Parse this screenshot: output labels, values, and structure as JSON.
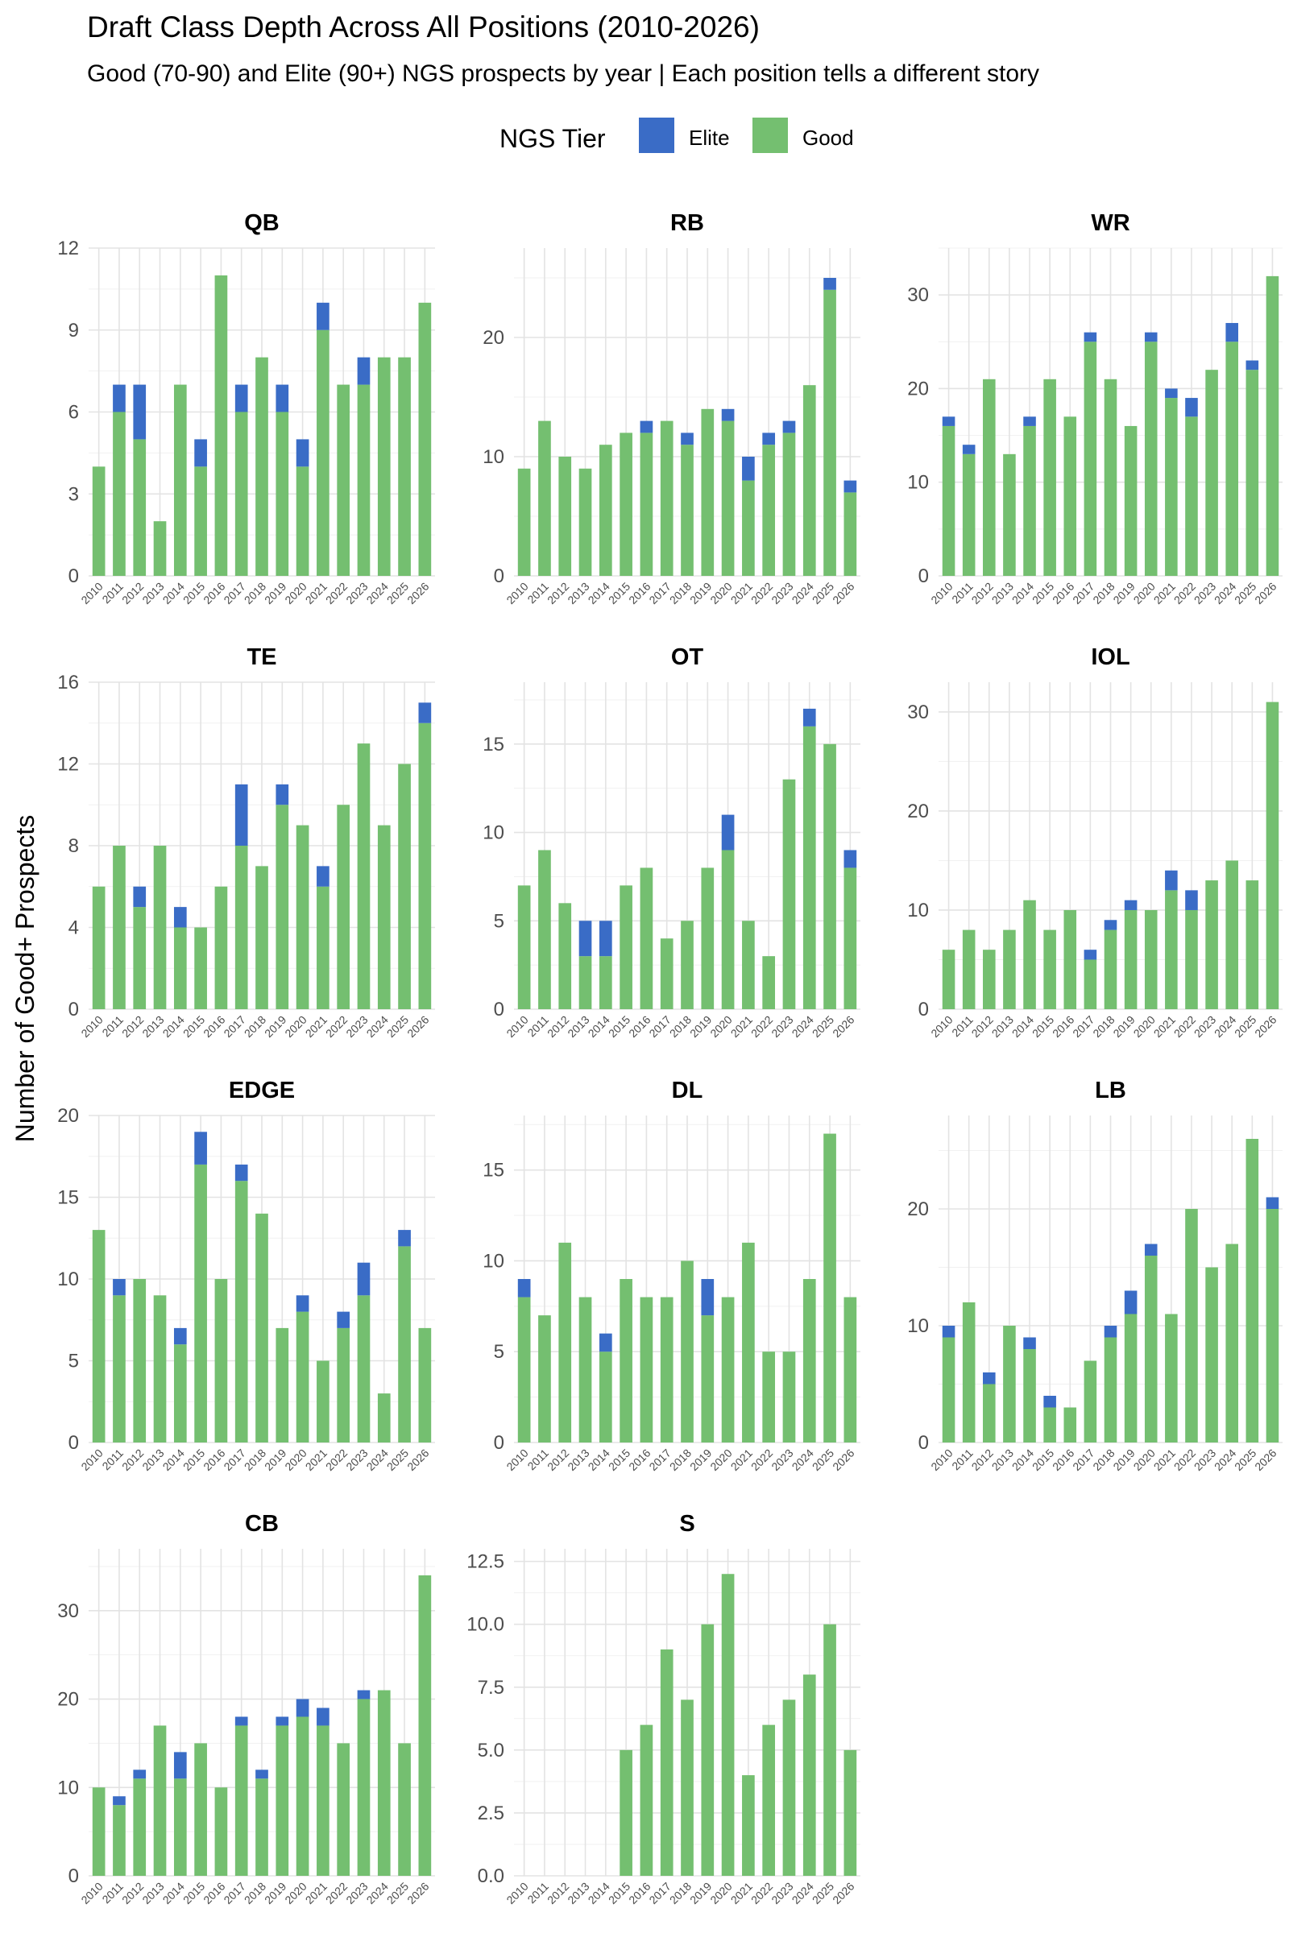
{
  "chart_data": {
    "type": "bar",
    "stacked": true,
    "title": "Draft Class Depth Across All Positions (2010-2026)",
    "subtitle": "Good (70-90) and Elite (90+) NGS prospects by year | Each position tells a different story",
    "ylabel": "Number of Good+ Prospects",
    "legend": {
      "title": "NGS Tier",
      "position": "top",
      "items": [
        {
          "name": "Elite",
          "color": "#3A6CC6"
        },
        {
          "name": "Good",
          "color": "#74BF70"
        }
      ]
    },
    "grid": true,
    "categories": [
      "2010",
      "2011",
      "2012",
      "2013",
      "2014",
      "2015",
      "2016",
      "2017",
      "2018",
      "2019",
      "2020",
      "2021",
      "2022",
      "2023",
      "2024",
      "2025",
      "2026"
    ],
    "facets": [
      {
        "name": "QB",
        "ylim": [
          0,
          12
        ],
        "yticks": [
          "0",
          "3",
          "6",
          "9",
          "12"
        ],
        "good": [
          4,
          6,
          5,
          2,
          7,
          4,
          11,
          6,
          8,
          6,
          4,
          9,
          7,
          7,
          8,
          8,
          10
        ],
        "elite": [
          0,
          1,
          2,
          0,
          0,
          1,
          0,
          1,
          0,
          1,
          1,
          1,
          0,
          1,
          0,
          0,
          0
        ]
      },
      {
        "name": "RB",
        "ylim": [
          0,
          27.5
        ],
        "yticks": [
          "0",
          "10",
          "20"
        ],
        "good": [
          9,
          13,
          10,
          9,
          11,
          12,
          12,
          13,
          11,
          14,
          13,
          8,
          11,
          12,
          16,
          24,
          7
        ],
        "elite": [
          0,
          0,
          0,
          0,
          0,
          0,
          1,
          0,
          1,
          0,
          1,
          2,
          1,
          1,
          0,
          1,
          1
        ]
      },
      {
        "name": "WR",
        "ylim": [
          0,
          35
        ],
        "yticks": [
          "0",
          "10",
          "20",
          "30"
        ],
        "good": [
          16,
          13,
          21,
          13,
          16,
          21,
          17,
          25,
          21,
          16,
          25,
          19,
          17,
          22,
          25,
          22,
          32
        ],
        "elite": [
          1,
          1,
          0,
          0,
          1,
          0,
          0,
          1,
          0,
          0,
          1,
          1,
          2,
          0,
          2,
          1,
          0
        ]
      },
      {
        "name": "TE",
        "ylim": [
          0,
          16
        ],
        "yticks": [
          "0",
          "4",
          "8",
          "12",
          "16"
        ],
        "good": [
          6,
          8,
          5,
          8,
          4,
          4,
          6,
          8,
          7,
          10,
          9,
          6,
          10,
          13,
          9,
          12,
          14
        ],
        "elite": [
          0,
          0,
          1,
          0,
          1,
          0,
          0,
          3,
          0,
          1,
          0,
          1,
          0,
          0,
          0,
          0,
          1
        ]
      },
      {
        "name": "OT",
        "ylim": [
          0,
          18.5
        ],
        "yticks": [
          "0",
          "5",
          "10",
          "15"
        ],
        "good": [
          7,
          9,
          6,
          3,
          3,
          7,
          8,
          4,
          5,
          8,
          9,
          5,
          3,
          13,
          16,
          15,
          8
        ],
        "elite": [
          0,
          0,
          0,
          2,
          2,
          0,
          0,
          0,
          0,
          0,
          2,
          0,
          0,
          0,
          1,
          0,
          1
        ]
      },
      {
        "name": "IOL",
        "ylim": [
          0,
          33
        ],
        "yticks": [
          "0",
          "10",
          "20",
          "30"
        ],
        "good": [
          6,
          8,
          6,
          8,
          11,
          8,
          10,
          5,
          8,
          10,
          10,
          12,
          10,
          13,
          15,
          13,
          31
        ],
        "elite": [
          0,
          0,
          0,
          0,
          0,
          0,
          0,
          1,
          1,
          1,
          0,
          2,
          2,
          0,
          0,
          0,
          0
        ]
      },
      {
        "name": "EDGE",
        "ylim": [
          0,
          20
        ],
        "yticks": [
          "0",
          "5",
          "10",
          "15",
          "20"
        ],
        "good": [
          13,
          9,
          10,
          9,
          6,
          17,
          10,
          16,
          14,
          7,
          8,
          5,
          7,
          9,
          3,
          12,
          7
        ],
        "elite": [
          0,
          1,
          0,
          0,
          1,
          2,
          0,
          1,
          0,
          0,
          1,
          0,
          1,
          2,
          0,
          1,
          0
        ]
      },
      {
        "name": "DL",
        "ylim": [
          0,
          18
        ],
        "yticks": [
          "0",
          "5",
          "10",
          "15"
        ],
        "good": [
          8,
          7,
          11,
          8,
          5,
          9,
          8,
          8,
          10,
          7,
          8,
          11,
          5,
          5,
          9,
          17,
          8
        ],
        "elite": [
          1,
          0,
          0,
          0,
          1,
          0,
          0,
          0,
          0,
          2,
          0,
          0,
          0,
          0,
          0,
          0,
          0
        ]
      },
      {
        "name": "LB",
        "ylim": [
          0,
          28
        ],
        "yticks": [
          "0",
          "10",
          "20"
        ],
        "good": [
          9,
          12,
          5,
          10,
          8,
          3,
          3,
          7,
          9,
          11,
          16,
          11,
          20,
          15,
          17,
          26,
          20
        ],
        "elite": [
          1,
          0,
          1,
          0,
          1,
          1,
          0,
          0,
          1,
          2,
          1,
          0,
          0,
          0,
          0,
          0,
          1
        ]
      },
      {
        "name": "CB",
        "ylim": [
          0,
          37
        ],
        "yticks": [
          "0",
          "10",
          "20",
          "30"
        ],
        "good": [
          10,
          8,
          11,
          17,
          11,
          15,
          10,
          17,
          11,
          17,
          18,
          17,
          15,
          20,
          21,
          15,
          34
        ],
        "elite": [
          0,
          1,
          1,
          0,
          3,
          0,
          0,
          1,
          1,
          1,
          2,
          2,
          0,
          1,
          0,
          0,
          0
        ]
      },
      {
        "name": "S",
        "ylim": [
          0,
          13
        ],
        "yticks": [
          "0.0",
          "2.5",
          "5.0",
          "7.5",
          "10.0",
          "12.5"
        ],
        "good": [
          0,
          0,
          0,
          0,
          0,
          5,
          6,
          9,
          7,
          10,
          12,
          4,
          6,
          7,
          8,
          10,
          5
        ],
        "elite": [
          0,
          0,
          0,
          0,
          0,
          0,
          0,
          0,
          0,
          0,
          0,
          0,
          0,
          0,
          0,
          0,
          0
        ]
      }
    ]
  }
}
